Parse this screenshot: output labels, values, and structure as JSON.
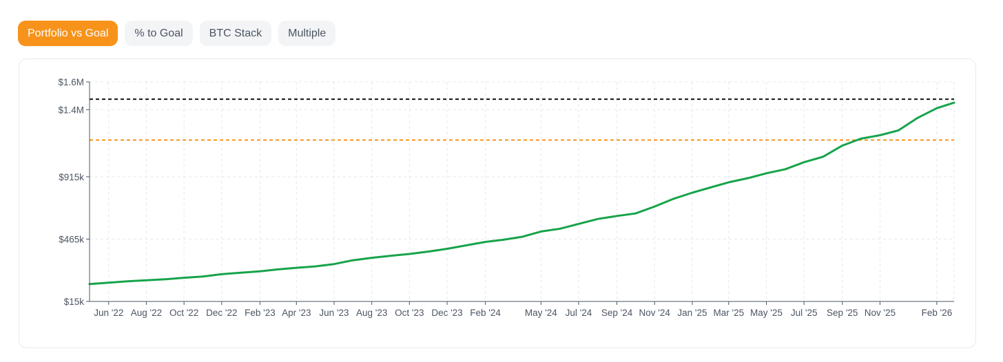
{
  "tabs": [
    {
      "label": "Portfolio vs Goal",
      "active": true
    },
    {
      "label": "% to Goal",
      "active": false
    },
    {
      "label": "BTC Stack",
      "active": false
    },
    {
      "label": "Multiple",
      "active": false
    }
  ],
  "colors": {
    "accent": "#f7931a",
    "series": "#16a34a",
    "goal_line": "#111111",
    "target_line": "#f7931a",
    "grid": "#e5e7eb"
  },
  "chart_data": {
    "type": "line",
    "x_start": "2022-05-01",
    "x_end": "2026-03-01",
    "ylim": [
      15000,
      1600000
    ],
    "y_ticks": [
      {
        "value": 15000,
        "label": "$15k"
      },
      {
        "value": 465000,
        "label": "$465k"
      },
      {
        "value": 915000,
        "label": "$915k"
      },
      {
        "value": 1400000,
        "label": "$1.4M"
      },
      {
        "value": 1600000,
        "label": "$1.6M"
      }
    ],
    "x_ticks": [
      {
        "date": "2022-06-01",
        "label": "Jun '22"
      },
      {
        "date": "2022-08-01",
        "label": "Aug '22"
      },
      {
        "date": "2022-10-01",
        "label": "Oct '22"
      },
      {
        "date": "2022-12-01",
        "label": "Dec '22"
      },
      {
        "date": "2023-02-01",
        "label": "Feb '23"
      },
      {
        "date": "2023-04-01",
        "label": "Apr '23"
      },
      {
        "date": "2023-06-01",
        "label": "Jun '23"
      },
      {
        "date": "2023-08-01",
        "label": "Aug '23"
      },
      {
        "date": "2023-10-01",
        "label": "Oct '23"
      },
      {
        "date": "2023-12-01",
        "label": "Dec '23"
      },
      {
        "date": "2024-02-01",
        "label": "Feb '24"
      },
      {
        "date": "2024-05-01",
        "label": "May '24"
      },
      {
        "date": "2024-07-01",
        "label": "Jul '24"
      },
      {
        "date": "2024-09-01",
        "label": "Sep '24"
      },
      {
        "date": "2024-11-01",
        "label": "Nov '24"
      },
      {
        "date": "2025-01-01",
        "label": "Jan '25"
      },
      {
        "date": "2025-03-01",
        "label": "Mar '25"
      },
      {
        "date": "2025-05-01",
        "label": "May '25"
      },
      {
        "date": "2025-07-01",
        "label": "Jul '25"
      },
      {
        "date": "2025-09-01",
        "label": "Sep '25"
      },
      {
        "date": "2025-11-01",
        "label": "Nov '25"
      },
      {
        "date": "2026-02-01",
        "label": "Feb '26"
      }
    ],
    "reference_lines": [
      {
        "value": 1475000,
        "color": "#111111",
        "style": "dashed"
      },
      {
        "value": 1180000,
        "color": "#f7931a",
        "style": "dashed"
      }
    ],
    "grid": true,
    "series": [
      {
        "color": "#16a34a",
        "points": [
          [
            "2022-05-01",
            140000
          ],
          [
            "2022-06-01",
            150000
          ],
          [
            "2022-07-01",
            160000
          ],
          [
            "2022-08-01",
            168000
          ],
          [
            "2022-09-01",
            175000
          ],
          [
            "2022-10-01",
            186000
          ],
          [
            "2022-11-01",
            195000
          ],
          [
            "2022-12-01",
            212000
          ],
          [
            "2023-01-01",
            222000
          ],
          [
            "2023-02-01",
            232000
          ],
          [
            "2023-03-01",
            246000
          ],
          [
            "2023-04-01",
            258000
          ],
          [
            "2023-05-01",
            268000
          ],
          [
            "2023-06-01",
            285000
          ],
          [
            "2023-07-01",
            312000
          ],
          [
            "2023-08-01",
            330000
          ],
          [
            "2023-09-01",
            345000
          ],
          [
            "2023-10-01",
            358000
          ],
          [
            "2023-11-01",
            375000
          ],
          [
            "2023-12-01",
            395000
          ],
          [
            "2024-01-01",
            420000
          ],
          [
            "2024-02-01",
            445000
          ],
          [
            "2024-03-01",
            460000
          ],
          [
            "2024-04-01",
            482000
          ],
          [
            "2024-05-01",
            520000
          ],
          [
            "2024-06-01",
            540000
          ],
          [
            "2024-07-01",
            575000
          ],
          [
            "2024-08-01",
            610000
          ],
          [
            "2024-09-01",
            632000
          ],
          [
            "2024-10-01",
            650000
          ],
          [
            "2024-11-01",
            700000
          ],
          [
            "2024-12-01",
            755000
          ],
          [
            "2025-01-01",
            800000
          ],
          [
            "2025-02-01",
            840000
          ],
          [
            "2025-03-01",
            875000
          ],
          [
            "2025-04-01",
            905000
          ],
          [
            "2025-05-01",
            940000
          ],
          [
            "2025-06-01",
            970000
          ],
          [
            "2025-07-01",
            1020000
          ],
          [
            "2025-08-01",
            1060000
          ],
          [
            "2025-09-01",
            1140000
          ],
          [
            "2025-10-01",
            1190000
          ],
          [
            "2025-11-01",
            1215000
          ],
          [
            "2025-12-01",
            1250000
          ],
          [
            "2026-01-01",
            1340000
          ],
          [
            "2026-02-01",
            1410000
          ],
          [
            "2026-03-01",
            1450000
          ]
        ]
      }
    ]
  }
}
